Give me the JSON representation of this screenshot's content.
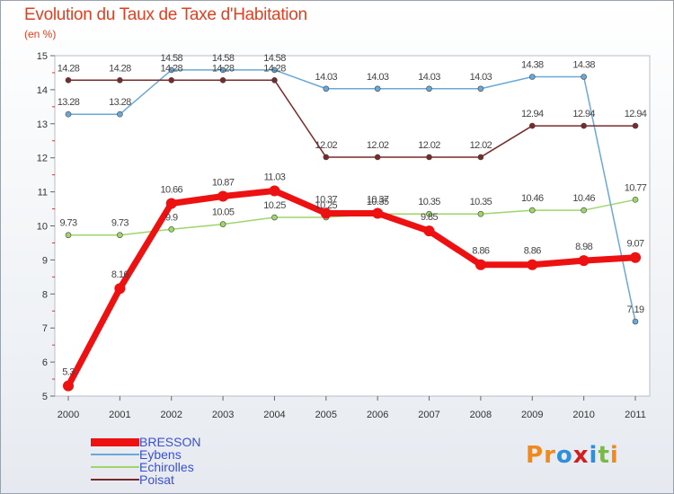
{
  "title": "Evolution du Taux de Taxe d'Habitation",
  "unit_label": "(en %)",
  "logo": {
    "text": "Proxiti",
    "letters": [
      "P",
      "r",
      "o",
      "x",
      "i",
      "t",
      "i"
    ],
    "colors": [
      "#f08a1e",
      "#f08a1e",
      "#2f8fd8",
      "#d21e1e",
      "#2f8fd8",
      "#7ab84a",
      "#f08a1e"
    ]
  },
  "chart_data": {
    "type": "line",
    "title": "Evolution du Taux de Taxe d'Habitation",
    "ylabel": "(en %)",
    "xlabel": "",
    "categories": [
      "2000",
      "2001",
      "2002",
      "2003",
      "2004",
      "2005",
      "2006",
      "2007",
      "2008",
      "2009",
      "2010",
      "2011"
    ],
    "ylim": [
      5,
      15
    ],
    "yticks": [
      "5",
      "6",
      "7",
      "8",
      "9",
      "10",
      "11",
      "12",
      "13",
      "14",
      "15"
    ],
    "grid": false,
    "legend_position": "bottom-left",
    "series": [
      {
        "name": "BRESSON",
        "color": "#ee1111",
        "values": [
          5.3,
          8.16,
          10.66,
          10.87,
          11.03,
          10.37,
          10.37,
          9.85,
          8.86,
          8.86,
          8.98,
          9.07
        ],
        "labels": [
          "5.3",
          "8.16",
          "10.66",
          "10.87",
          "11.03",
          "10.37",
          "10.37",
          "9.85",
          "8.86",
          "8.86",
          "8.98",
          "9.07"
        ]
      },
      {
        "name": "Eybens",
        "color": "#6aa8d8",
        "values": [
          13.28,
          13.28,
          14.58,
          14.58,
          14.58,
          14.03,
          14.03,
          14.03,
          14.03,
          14.38,
          14.38,
          7.19
        ],
        "labels": [
          "13.28",
          "13.28",
          "14.58",
          "14.58",
          "14.58",
          "14.03",
          "14.03",
          "14.03",
          "14.03",
          "14.38",
          "14.38",
          "7.19"
        ]
      },
      {
        "name": "Echirolles",
        "color": "#9ed66a",
        "values": [
          9.73,
          9.73,
          9.9,
          10.05,
          10.25,
          10.25,
          10.35,
          10.35,
          10.35,
          10.46,
          10.46,
          10.77
        ],
        "labels": [
          "9.73",
          "9.73",
          "9.9",
          "10.05",
          "10.25",
          "10.25",
          "10.35",
          "10.35",
          "10.35",
          "10.46",
          "10.46",
          "10.77"
        ]
      },
      {
        "name": "Poisat",
        "color": "#7a2a2a",
        "values": [
          14.28,
          14.28,
          14.28,
          14.28,
          14.28,
          12.02,
          12.02,
          12.02,
          12.02,
          12.94,
          12.94,
          12.94
        ],
        "labels": [
          "14.28",
          "14.28",
          "14.28",
          "14.28",
          "14.28",
          "12.02",
          "12.02",
          "12.02",
          "12.02",
          "12.94",
          "12.94",
          "12.94"
        ]
      }
    ]
  }
}
